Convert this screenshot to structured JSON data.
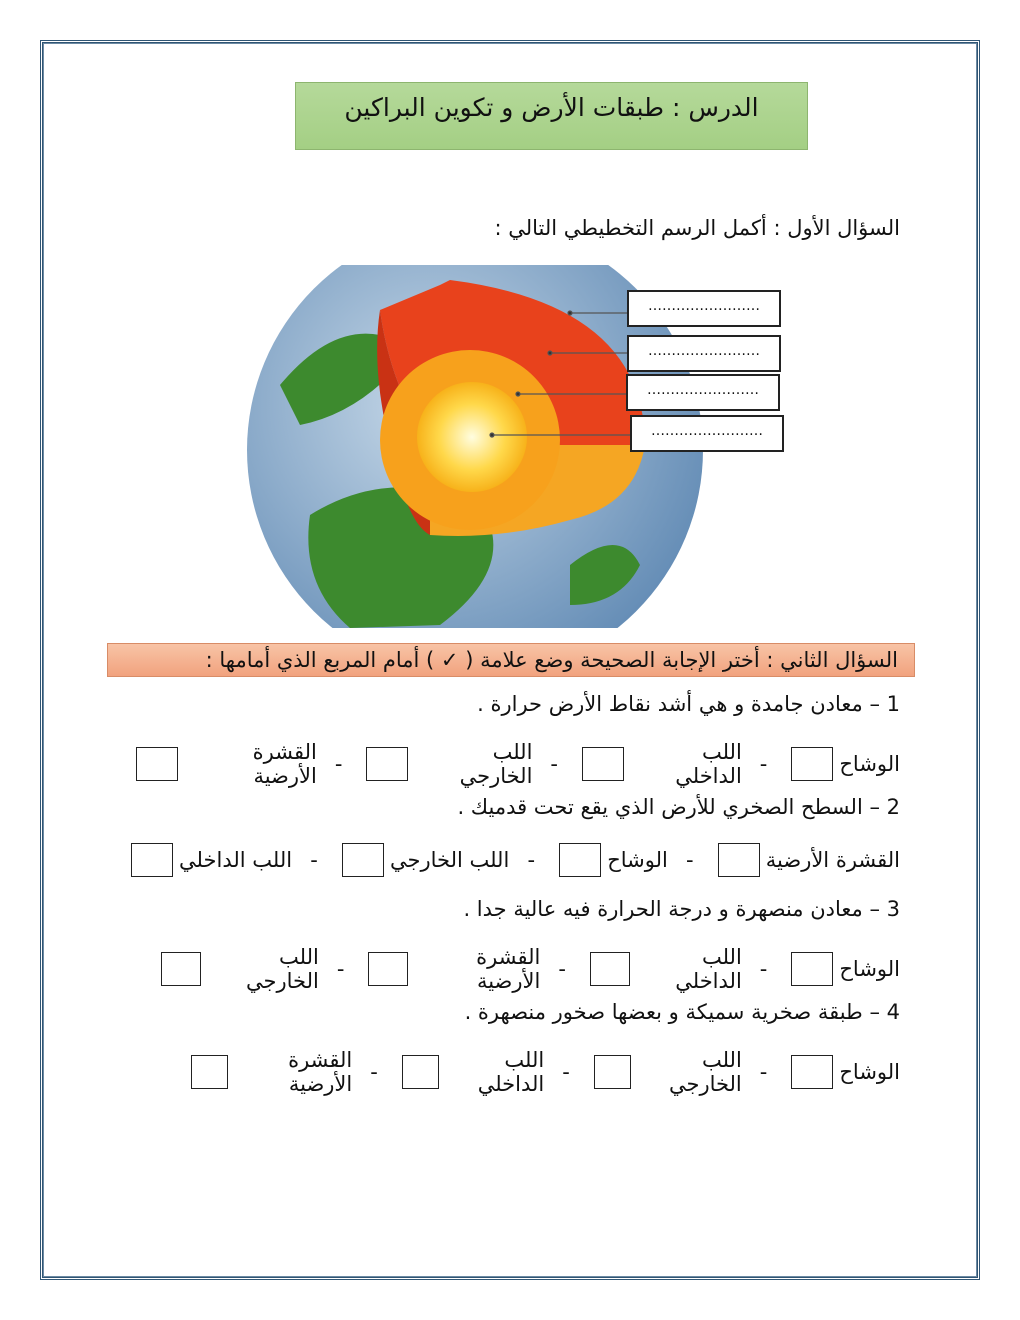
{
  "title": "الدرس : طبقات الأرض و تكوين البراكين",
  "q1": {
    "text": "السؤال الأول : أكمل الرسم التخطيطي التالي :",
    "blanks": [
      "……………………",
      "……………………",
      "……………………",
      "……………………"
    ]
  },
  "q2": {
    "header": "السؤال الثاني : أختر الإجابة الصحيحة وضع علامة ( ✓ ) أمام المربع الذي أمامها :",
    "items": [
      {
        "stem": "1 – معادن جامدة و هي أشد نقاط الأرض حرارة .",
        "options": [
          "الوشاح",
          "اللب الداخلي",
          "اللب الخارجي",
          "القشرة الأرضية"
        ]
      },
      {
        "stem": "2 – السطح الصخري للأرض الذي يقع تحت قدميك .",
        "options": [
          "القشرة الأرضية",
          "الوشاح",
          "اللب الخارجي",
          "اللب الداخلي"
        ]
      },
      {
        "stem": "3 – معادن منصهرة و درجة الحرارة فيه عالية جدا .",
        "options": [
          "الوشاح",
          "اللب الداخلي",
          "القشرة الأرضية",
          "اللب الخارجي"
        ]
      },
      {
        "stem": "4 – طبقة صخرية سميكة و بعضها صخور منصهرة .",
        "options": [
          "الوشاح",
          "اللب الخارجي",
          "اللب الداخلي",
          "القشرة الأرضية"
        ]
      }
    ]
  },
  "colors": {
    "title_bg": "#a9d18e",
    "q2_bg": "#f4b183",
    "border": "#2f5574"
  }
}
